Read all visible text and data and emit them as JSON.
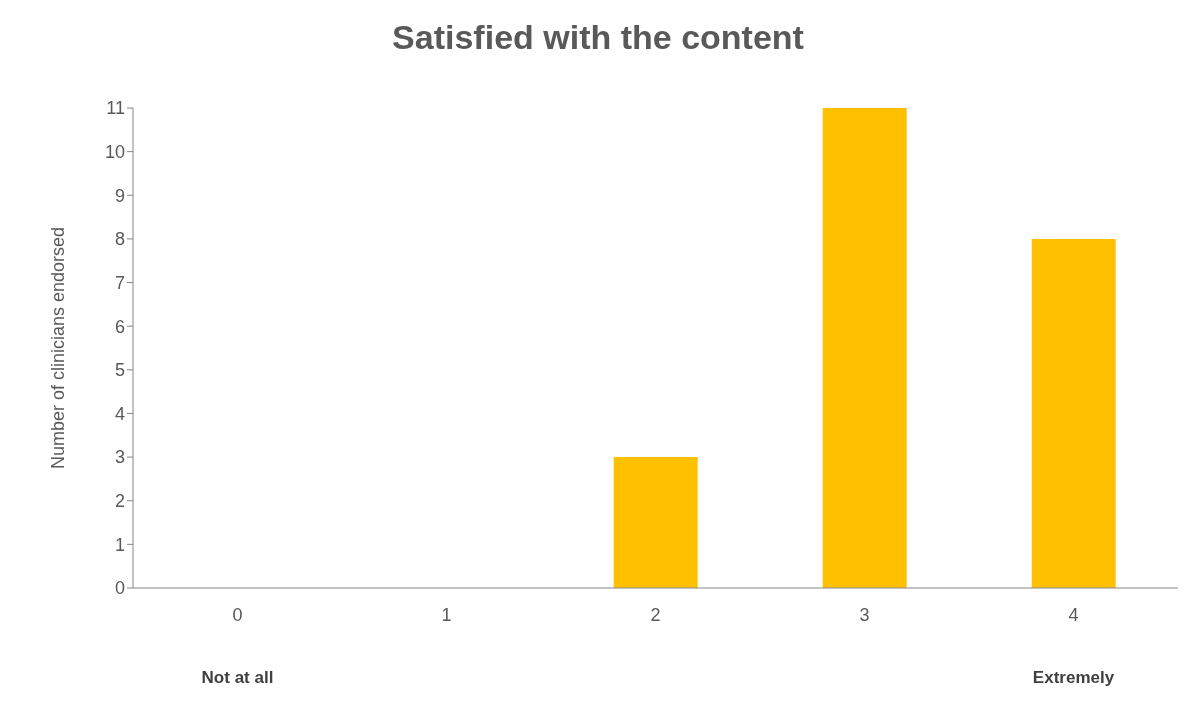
{
  "chart_data": {
    "type": "bar",
    "title": "Satisfied with the content",
    "ylabel": "Number of clinicians endorsed",
    "categories": [
      "0",
      "1",
      "2",
      "3",
      "4"
    ],
    "values": [
      0,
      0,
      3,
      11,
      8
    ],
    "color": "#ffc000",
    "ylim": [
      0,
      11
    ],
    "yticks": [
      0,
      1,
      2,
      3,
      4,
      5,
      6,
      7,
      8,
      9,
      10,
      11
    ],
    "grid": false,
    "annotations": [
      "Not at all",
      "Extremely"
    ]
  }
}
